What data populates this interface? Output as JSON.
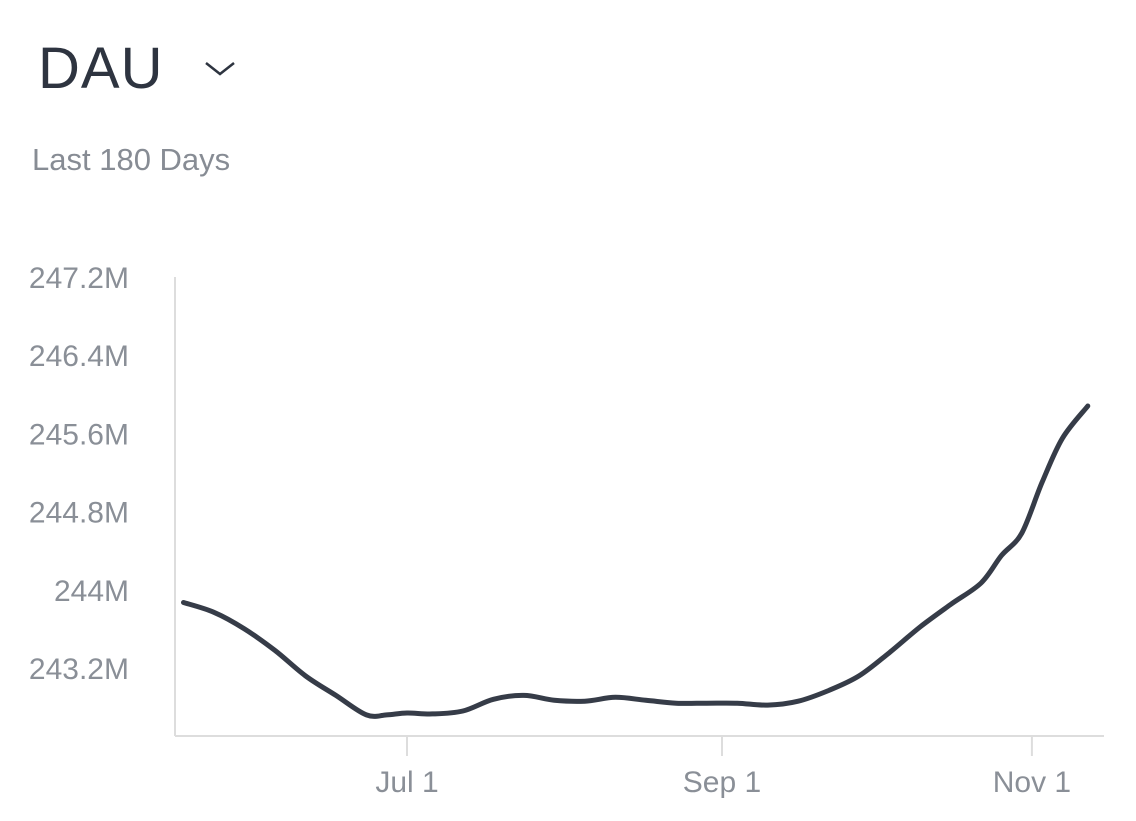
{
  "header": {
    "title": "DAU",
    "subtitle": "Last 180 Days",
    "dropdown_icon": "chevron-down-icon"
  },
  "colors": {
    "line": "#363c48",
    "axis": "#dddddd",
    "tick_text": "#8a8f97",
    "title": "#2e3440"
  },
  "chart_data": {
    "type": "line",
    "title": "DAU",
    "subtitle": "Last 180 Days",
    "xlabel": "",
    "ylabel": "",
    "y_ticks": [
      "247.2M",
      "246.4M",
      "245.6M",
      "244.8M",
      "244M",
      "243.2M"
    ],
    "y_tick_values": [
      247.2,
      246.4,
      245.6,
      244.8,
      244.0,
      243.2
    ],
    "x_ticks": [
      "Jul 1",
      "Sep 1",
      "Nov 1"
    ],
    "ylim": [
      242.53,
      247.2
    ],
    "grid": false,
    "legend": "none",
    "series": [
      {
        "name": "DAU (M)",
        "x": [
          "May 18",
          "May 24",
          "May 30",
          "Jun 5",
          "Jun 11",
          "Jun 17",
          "Jun 23",
          "Jun 27",
          "Jul 1",
          "Jul 6",
          "Jul 12",
          "Jul 18",
          "Jul 24",
          "Jul 30",
          "Aug 5",
          "Aug 11",
          "Aug 17",
          "Aug 23",
          "Aug 29",
          "Sep 4",
          "Sep 10",
          "Sep 16",
          "Sep 22",
          "Sep 28",
          "Oct 4",
          "Oct 10",
          "Oct 16",
          "Oct 22",
          "Oct 26",
          "Oct 30",
          "Nov 3",
          "Nov 7",
          "Nov 12"
        ],
        "values": [
          243.87,
          243.77,
          243.6,
          243.38,
          243.12,
          242.92,
          242.72,
          242.72,
          242.74,
          242.73,
          242.76,
          242.88,
          242.92,
          242.87,
          242.86,
          242.9,
          242.87,
          242.84,
          242.84,
          242.84,
          242.82,
          242.86,
          242.97,
          243.12,
          243.36,
          243.62,
          243.85,
          244.07,
          244.35,
          244.58,
          245.1,
          245.55,
          245.88
        ]
      }
    ]
  }
}
